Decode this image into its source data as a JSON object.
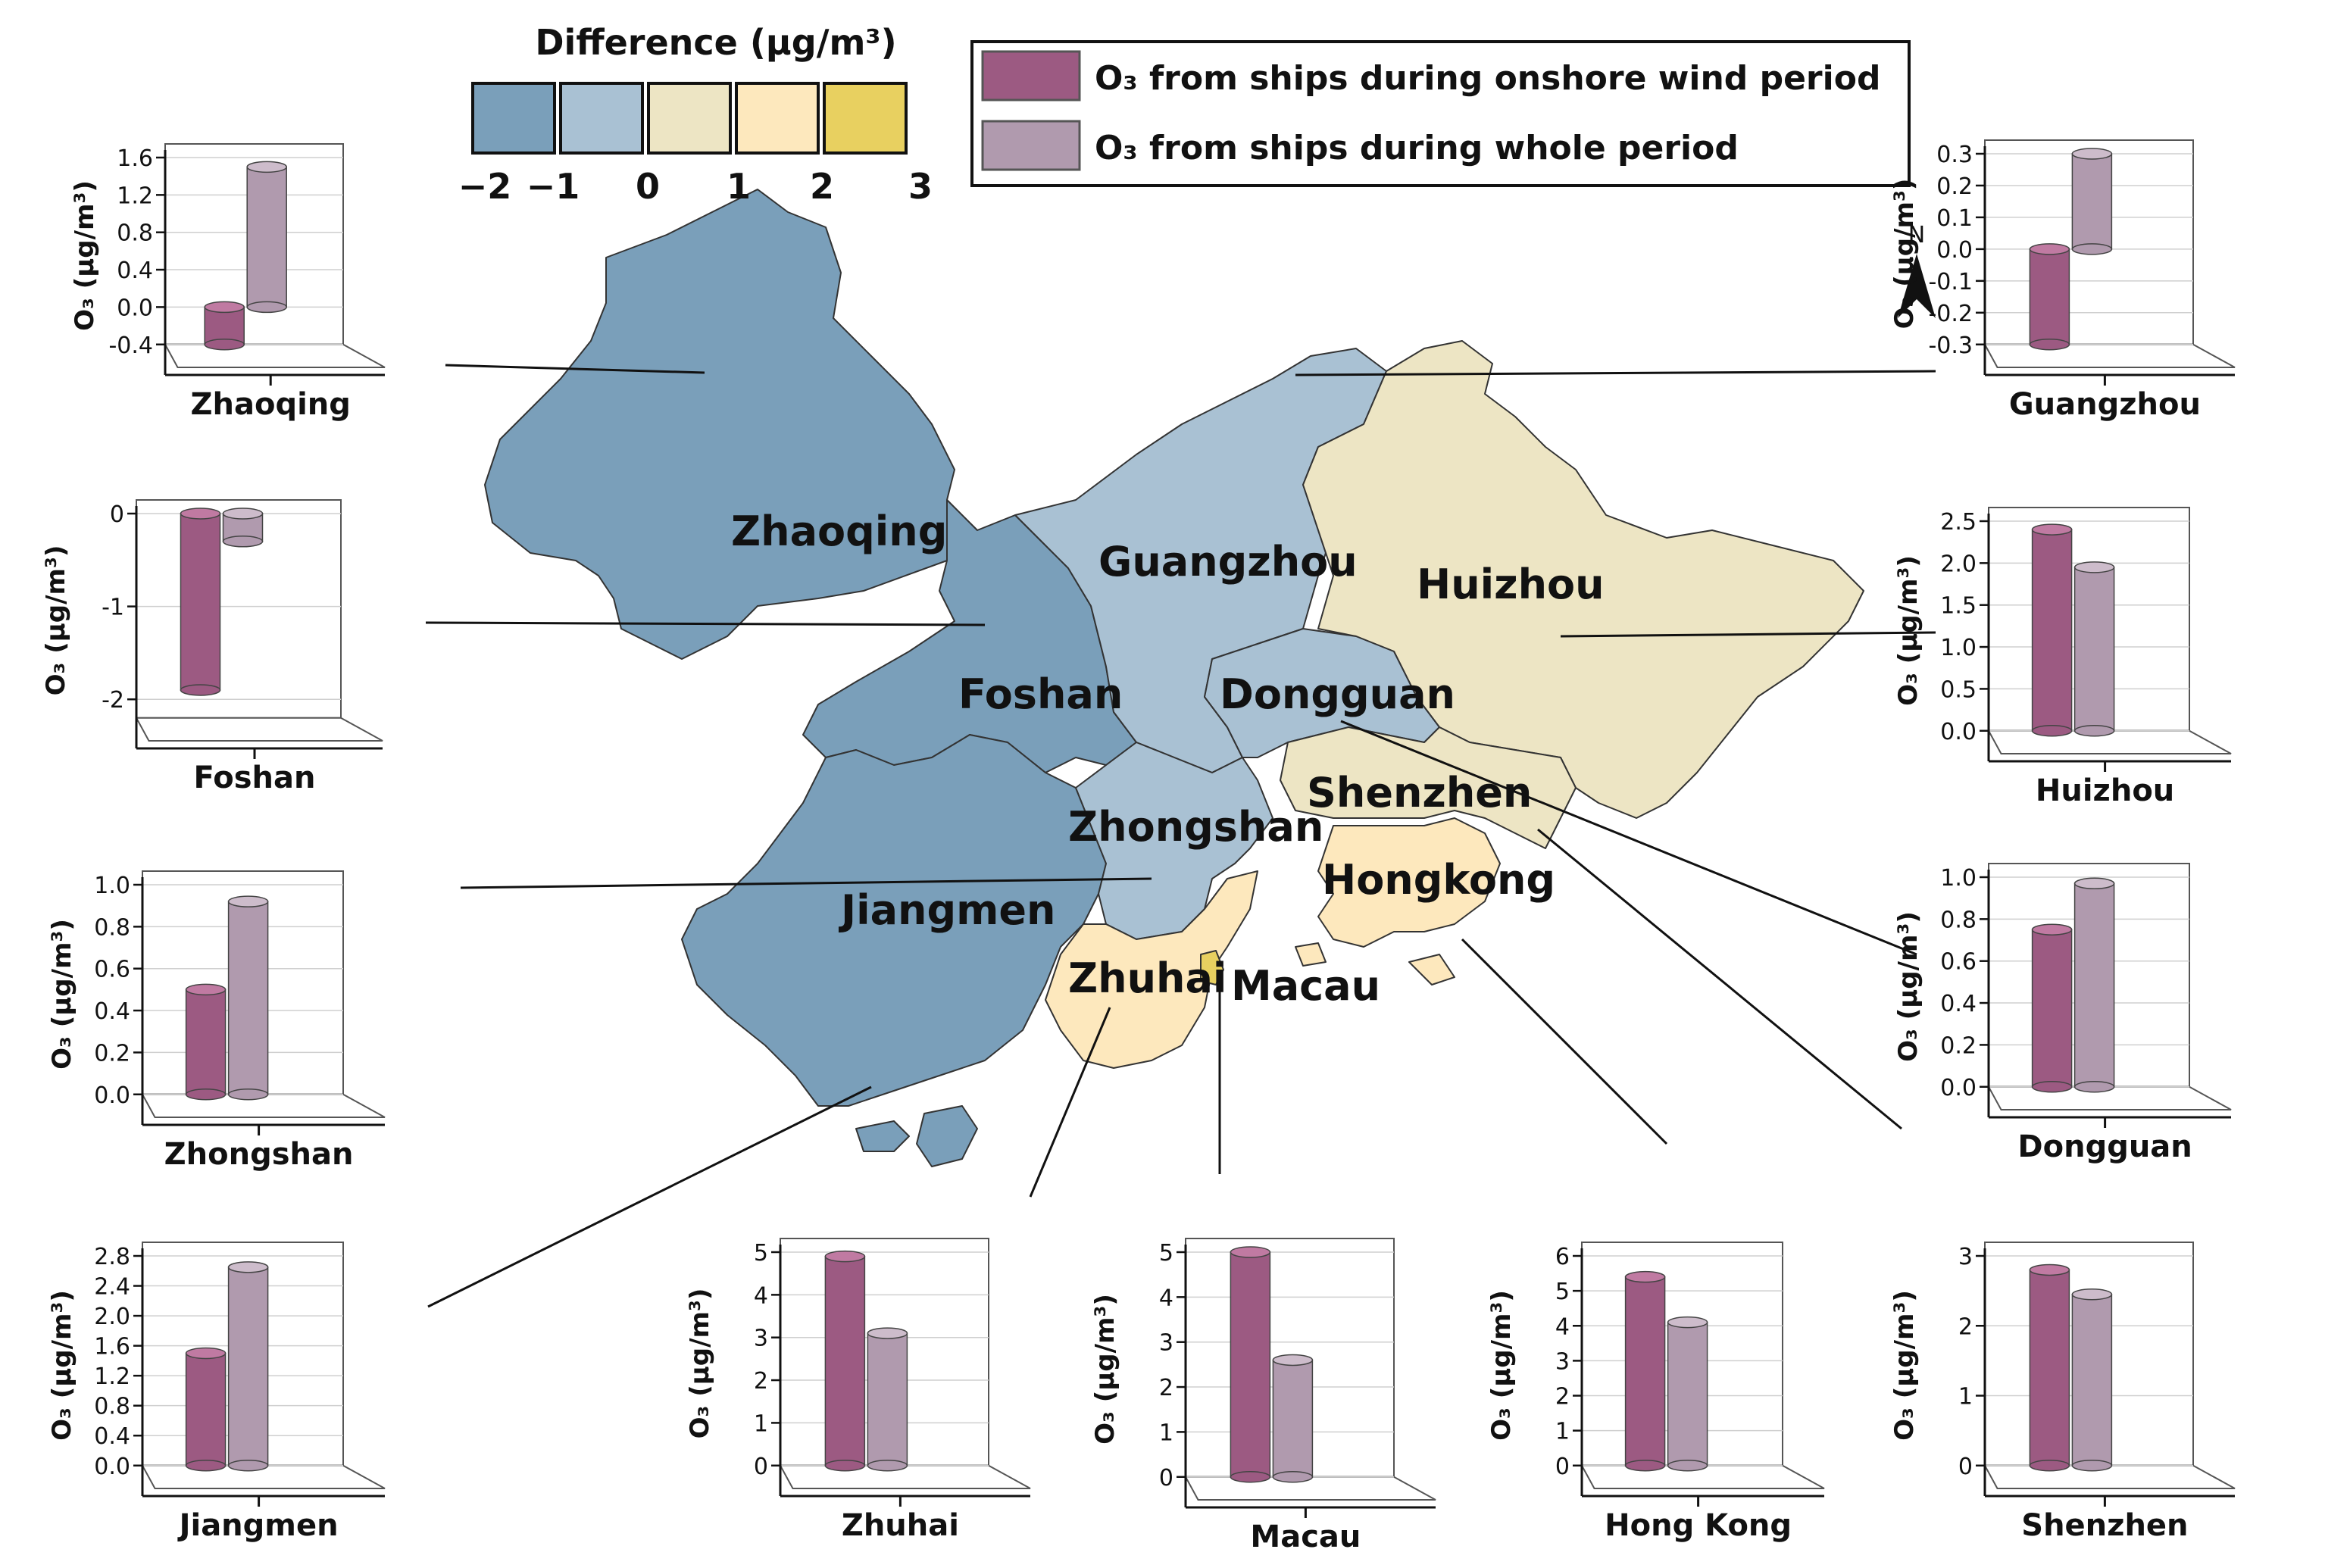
{
  "legend": {
    "title": "Difference (μg/m³)",
    "scale_colors": [
      "#7a9fba",
      "#a9c1d3",
      "#ede5c4",
      "#fde8bd",
      "#e8d060"
    ],
    "ticks": [
      "−2",
      "−1",
      "0",
      "1",
      "2",
      "3"
    ],
    "series_onshore": "O₃ from ships during onshore wind period",
    "series_whole": "O₃ from ships during whole period",
    "color_onshore": "#9c5a82",
    "color_whole": "#b09aae"
  },
  "north_label": "N",
  "map_labels": [
    "Zhaoqing",
    "Guangzhou",
    "Huizhou",
    "Foshan",
    "Dongguan",
    "Shenzhen",
    "Zhongshan",
    "Hongkong",
    "Jiangmen",
    "Zhuhai",
    "Macau"
  ],
  "axis_label": "O₃ (μg/m³)",
  "chart_data": [
    {
      "type": "bar",
      "city": "Zhaoqing",
      "categories": [
        "onshore",
        "whole"
      ],
      "values": [
        -0.4,
        1.5
      ],
      "ylim": [
        -0.4,
        1.6
      ],
      "ticks": [
        "-0.4",
        "0.0",
        "0.4",
        "0.8",
        "1.2",
        "1.6"
      ]
    },
    {
      "type": "bar",
      "city": "Foshan",
      "categories": [
        "onshore",
        "whole"
      ],
      "values": [
        -1.9,
        -0.3
      ],
      "ylim": [
        -2.2,
        0
      ],
      "ticks": [
        "-2",
        "-1",
        "0"
      ]
    },
    {
      "type": "bar",
      "city": "Zhongshan",
      "categories": [
        "onshore",
        "whole"
      ],
      "values": [
        0.5,
        0.92
      ],
      "ylim": [
        0,
        1.0
      ],
      "ticks": [
        "0.0",
        "0.2",
        "0.4",
        "0.6",
        "0.8",
        "1.0"
      ]
    },
    {
      "type": "bar",
      "city": "Jiangmen",
      "categories": [
        "onshore",
        "whole"
      ],
      "values": [
        1.5,
        2.65
      ],
      "ylim": [
        0,
        2.8
      ],
      "ticks": [
        "0.0",
        "0.4",
        "0.8",
        "1.2",
        "1.6",
        "2.0",
        "2.4",
        "2.8"
      ]
    },
    {
      "type": "bar",
      "city": "Zhuhai",
      "categories": [
        "onshore",
        "whole"
      ],
      "values": [
        4.9,
        3.1
      ],
      "ylim": [
        0,
        5
      ],
      "ticks": [
        "0",
        "1",
        "2",
        "3",
        "4",
        "5"
      ]
    },
    {
      "type": "bar",
      "city": "Macau",
      "categories": [
        "onshore",
        "whole"
      ],
      "values": [
        5.0,
        2.6
      ],
      "ylim": [
        0,
        5
      ],
      "ticks": [
        "0",
        "1",
        "2",
        "3",
        "4",
        "5"
      ]
    },
    {
      "type": "bar",
      "city": "Hong Kong",
      "categories": [
        "onshore",
        "whole"
      ],
      "values": [
        5.4,
        4.1
      ],
      "ylim": [
        0,
        6
      ],
      "ticks": [
        "0",
        "1",
        "2",
        "3",
        "4",
        "5",
        "6"
      ]
    },
    {
      "type": "bar",
      "city": "Shenzhen",
      "categories": [
        "onshore",
        "whole"
      ],
      "values": [
        2.8,
        2.45
      ],
      "ylim": [
        0,
        3
      ],
      "ticks": [
        "0",
        "1",
        "2",
        "3"
      ]
    },
    {
      "type": "bar",
      "city": "Dongguan",
      "categories": [
        "onshore",
        "whole"
      ],
      "values": [
        0.75,
        0.97
      ],
      "ylim": [
        0,
        1.0
      ],
      "ticks": [
        "0.0",
        "0.2",
        "0.4",
        "0.6",
        "0.8",
        "1.0"
      ]
    },
    {
      "type": "bar",
      "city": "Huizhou",
      "categories": [
        "onshore",
        "whole"
      ],
      "values": [
        2.4,
        1.95
      ],
      "ylim": [
        0,
        2.5
      ],
      "ticks": [
        "0.0",
        "0.5",
        "1.0",
        "1.5",
        "2.0",
        "2.5"
      ]
    },
    {
      "type": "bar",
      "city": "Guangzhou",
      "categories": [
        "onshore",
        "whole"
      ],
      "values": [
        -0.3,
        0.3
      ],
      "ylim": [
        -0.3,
        0.3
      ],
      "ticks": [
        "-0.3",
        "-0.2",
        "-0.1",
        "0.0",
        "0.1",
        "0.2",
        "0.3"
      ]
    }
  ]
}
